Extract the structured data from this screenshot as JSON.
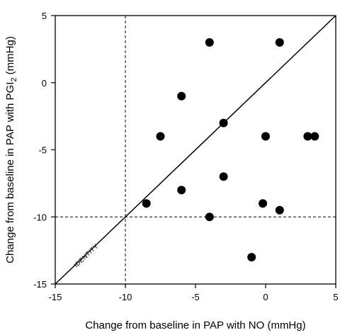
{
  "chart_data": {
    "type": "scatter",
    "title": "",
    "xlabel": "Change from baseline in PAP with NO (mmHg)",
    "ylabel_parts": [
      "Change from baseline in PAP with PGI",
      "2",
      " (mmHg)"
    ],
    "xlim": [
      -15,
      5
    ],
    "ylim": [
      -15,
      5
    ],
    "xticks": [
      -15,
      -10,
      -5,
      0,
      5
    ],
    "yticks": [
      -15,
      -10,
      -5,
      0,
      5
    ],
    "xtick_labels": [
      "-15",
      "-10",
      "-5",
      "0",
      "5"
    ],
    "ytick_labels": [
      "-15",
      "-10",
      "-5",
      "0",
      "5"
    ],
    "grid": false,
    "identity_line": {
      "label": "IDENTITY"
    },
    "reference_lines": {
      "x": -10,
      "y": -10
    },
    "points": [
      {
        "x": -4,
        "y": 3
      },
      {
        "x": 1,
        "y": 3
      },
      {
        "x": -6,
        "y": -1
      },
      {
        "x": -7.5,
        "y": -4
      },
      {
        "x": -3,
        "y": -3
      },
      {
        "x": 0,
        "y": -4
      },
      {
        "x": 3,
        "y": -4
      },
      {
        "x": 3.5,
        "y": -4
      },
      {
        "x": -3,
        "y": -7
      },
      {
        "x": -6,
        "y": -8
      },
      {
        "x": -8.5,
        "y": -9
      },
      {
        "x": -0.2,
        "y": -9
      },
      {
        "x": 1,
        "y": -9.5
      },
      {
        "x": -4,
        "y": -10
      },
      {
        "x": -1,
        "y": -13
      }
    ],
    "marker_color": "#000000"
  }
}
